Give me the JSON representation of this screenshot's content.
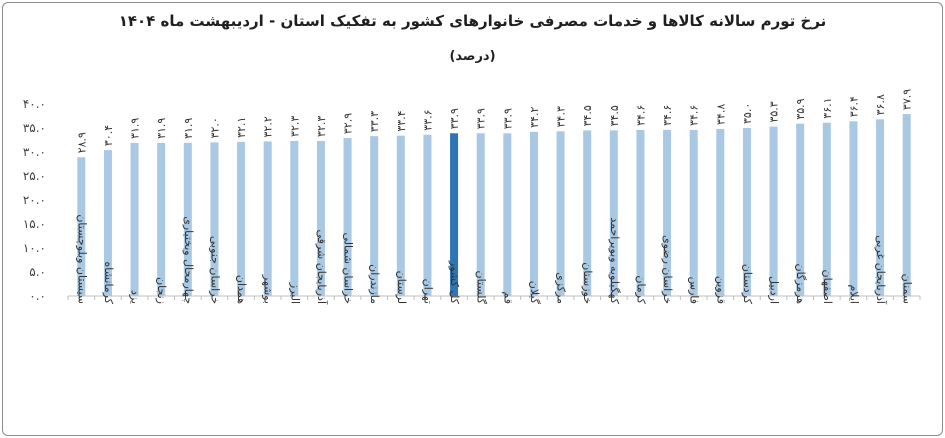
{
  "chart_data": {
    "type": "bar",
    "title": "نرخ تورم سالانه کالاها و خدمات مصرفی خانوارهای کشور به تفکیک استان - اردیبهشت ماه ۱۴۰۴",
    "subtitle": "(درصد)",
    "ylim": [
      0,
      40
    ],
    "grid": false,
    "ytick_labels": [
      "۰.۰",
      "۵.۰",
      "۱۰.۰",
      "۱۵.۰",
      "۲۰.۰",
      "۲۵.۰",
      "۳۰.۰",
      "۳۵.۰",
      "۴۰.۰"
    ],
    "yticks": [
      0,
      5,
      10,
      15,
      20,
      25,
      30,
      35,
      40
    ],
    "categories": [
      "سیستان وبلوچستان",
      "کرمانشاه",
      "یزد",
      "زنجان",
      "چهارمحال وبختیاری",
      "خراسان جنوبی",
      "همدان",
      "بوشهر",
      "البرز",
      "آذربایجان شرقی",
      "خراسان شمالی",
      "مازندران",
      "لرستان",
      "تهران",
      "کل کشور",
      "گلستان",
      "قم",
      "گیلان",
      "مرکزی",
      "خوزستان",
      "کهگیلویه وبویراحمد",
      "کرمان",
      "خراسان رضوی",
      "فارس",
      "قزوین",
      "کردستان",
      "اردبیل",
      "هرمزگان",
      "اصفهان",
      "ایلام",
      "آذربایجان غربی",
      "سمنان"
    ],
    "values": [
      28.9,
      30.4,
      31.9,
      31.9,
      31.9,
      32.0,
      32.1,
      32.2,
      32.3,
      32.3,
      32.9,
      33.3,
      33.4,
      33.6,
      33.9,
      33.9,
      33.9,
      34.2,
      34.3,
      34.5,
      34.5,
      34.6,
      34.6,
      34.6,
      34.8,
      35.0,
      35.3,
      35.9,
      36.1,
      36.4,
      36.8,
      37.9
    ],
    "value_labels": [
      "۲۸.۹",
      "۳۰.۴",
      "۳۱.۹",
      "۳۱.۹",
      "۳۱.۹",
      "۳۲.۰",
      "۳۲.۱",
      "۳۲.۲",
      "۳۲.۳",
      "۳۲.۳",
      "۳۲.۹",
      "۳۳.۳",
      "۳۳.۴",
      "۳۳.۶",
      "۳۳.۹",
      "۳۳.۹",
      "۳۳.۹",
      "۳۴.۲",
      "۳۴.۳",
      "۳۴.۵",
      "۳۴.۵",
      "۳۴.۶",
      "۳۴.۶",
      "۳۴.۶",
      "۳۴.۸",
      "۳۵.۰",
      "۳۵.۳",
      "۳۵.۹",
      "۳۶.۱",
      "۳۶.۴",
      "۳۶.۸",
      "۳۷.۹"
    ],
    "highlight_category": "کل کشور",
    "colors": {
      "bar": "#a8c8e4",
      "highlight": "#2e75b6",
      "axis": "#bfbfbf"
    }
  }
}
